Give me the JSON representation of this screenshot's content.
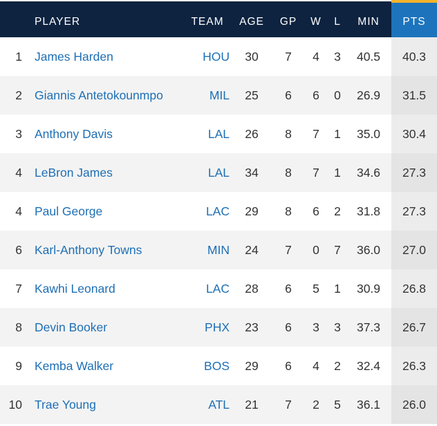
{
  "headers": {
    "player": "PLAYER",
    "team": "TEAM",
    "age": "AGE",
    "gp": "GP",
    "w": "W",
    "l": "L",
    "min": "MIN",
    "pts": "PTS"
  },
  "rows": [
    {
      "rank": "1",
      "player": "James Harden",
      "team": "HOU",
      "age": "30",
      "gp": "7",
      "w": "4",
      "l": "3",
      "min": "40.5",
      "pts": "40.3"
    },
    {
      "rank": "2",
      "player": "Giannis Antetokounmpo",
      "team": "MIL",
      "age": "25",
      "gp": "6",
      "w": "6",
      "l": "0",
      "min": "26.9",
      "pts": "31.5"
    },
    {
      "rank": "3",
      "player": "Anthony Davis",
      "team": "LAL",
      "age": "26",
      "gp": "8",
      "w": "7",
      "l": "1",
      "min": "35.0",
      "pts": "30.4"
    },
    {
      "rank": "4",
      "player": "LeBron James",
      "team": "LAL",
      "age": "34",
      "gp": "8",
      "w": "7",
      "l": "1",
      "min": "34.6",
      "pts": "27.3"
    },
    {
      "rank": "4",
      "player": "Paul George",
      "team": "LAC",
      "age": "29",
      "gp": "8",
      "w": "6",
      "l": "2",
      "min": "31.8",
      "pts": "27.3"
    },
    {
      "rank": "6",
      "player": "Karl-Anthony Towns",
      "team": "MIN",
      "age": "24",
      "gp": "7",
      "w": "0",
      "l": "7",
      "min": "36.0",
      "pts": "27.0"
    },
    {
      "rank": "7",
      "player": "Kawhi Leonard",
      "team": "LAC",
      "age": "28",
      "gp": "6",
      "w": "5",
      "l": "1",
      "min": "30.9",
      "pts": "26.8"
    },
    {
      "rank": "8",
      "player": "Devin Booker",
      "team": "PHX",
      "age": "23",
      "gp": "6",
      "w": "3",
      "l": "3",
      "min": "37.3",
      "pts": "26.7"
    },
    {
      "rank": "9",
      "player": "Kemba Walker",
      "team": "BOS",
      "age": "29",
      "gp": "6",
      "w": "4",
      "l": "2",
      "min": "32.4",
      "pts": "26.3"
    },
    {
      "rank": "10",
      "player": "Trae Young",
      "team": "ATL",
      "age": "21",
      "gp": "7",
      "w": "2",
      "l": "5",
      "min": "36.1",
      "pts": "26.0"
    }
  ],
  "colors": {
    "header_bg": "#0d2340",
    "sorted_header_bg": "#1d74bc",
    "sorted_header_accent": "#f7b32b",
    "link": "#1e6fb5"
  }
}
